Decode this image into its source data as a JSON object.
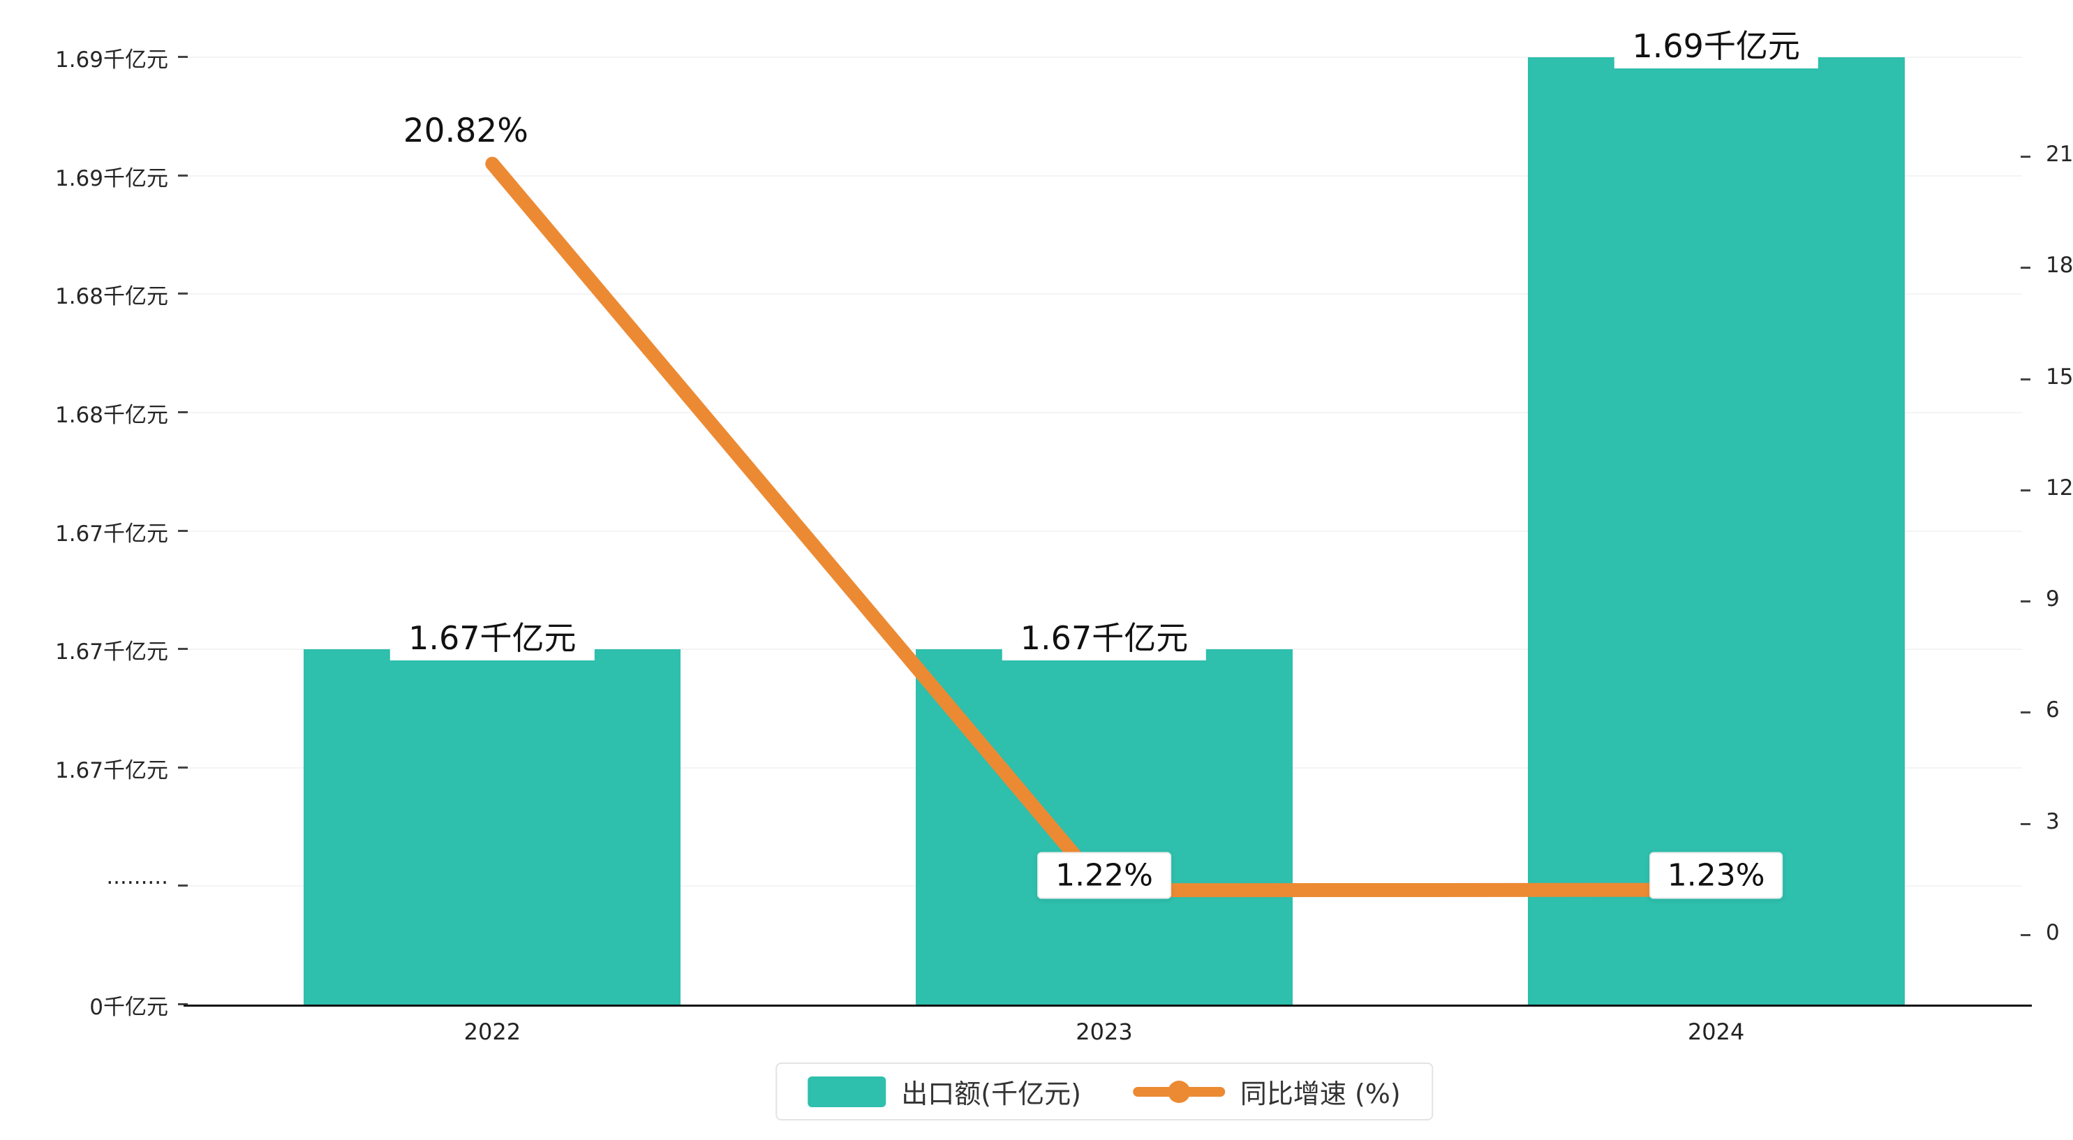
{
  "chart_data": {
    "type": "bar",
    "combo": "bar+line",
    "categories": [
      "2022",
      "2023",
      "2024"
    ],
    "series": [
      {
        "name": "出口额(千亿元)",
        "type": "bar",
        "color": "#2ebfad",
        "values": [
          1.67,
          1.67,
          1.69
        ],
        "value_labels": [
          "1.67千亿元",
          "1.67千亿元",
          "1.69千亿元"
        ]
      },
      {
        "name": "同比增速 (%)",
        "type": "line",
        "color": "#ec8a33",
        "values": [
          20.82,
          1.22,
          1.23
        ],
        "value_labels": [
          "20.82%",
          "1.22%",
          "1.23%"
        ]
      }
    ],
    "left_axis": {
      "tick_labels": [
        "1.69千亿元",
        "1.69千亿元",
        "1.68千亿元",
        "1.68千亿元",
        "1.67千亿元",
        "1.67千亿元",
        "1.67千亿元",
        "·········",
        "0千亿元"
      ],
      "top_value": 1.69,
      "tick_step": 0.004,
      "axis_break": true,
      "bottom_label": "0千亿元"
    },
    "right_axis": {
      "tick_labels": [
        "21",
        "18",
        "15",
        "12",
        "9",
        "6",
        "3",
        "0"
      ],
      "min": 0,
      "max": 21
    },
    "legend": [
      {
        "label": "出口额(千亿元)",
        "marker": "rect",
        "color": "#2ebfad"
      },
      {
        "label": "同比增速 (%)",
        "marker": "line-dot",
        "color": "#ec8a33"
      }
    ],
    "grid": true,
    "legend_position": "bottom"
  },
  "colors": {
    "bar": "#2ebfad",
    "line": "#ec8a33",
    "axis": "#111111",
    "tick_text": "#262626",
    "grid": "#f4f4f4",
    "background": "#ffffff"
  }
}
